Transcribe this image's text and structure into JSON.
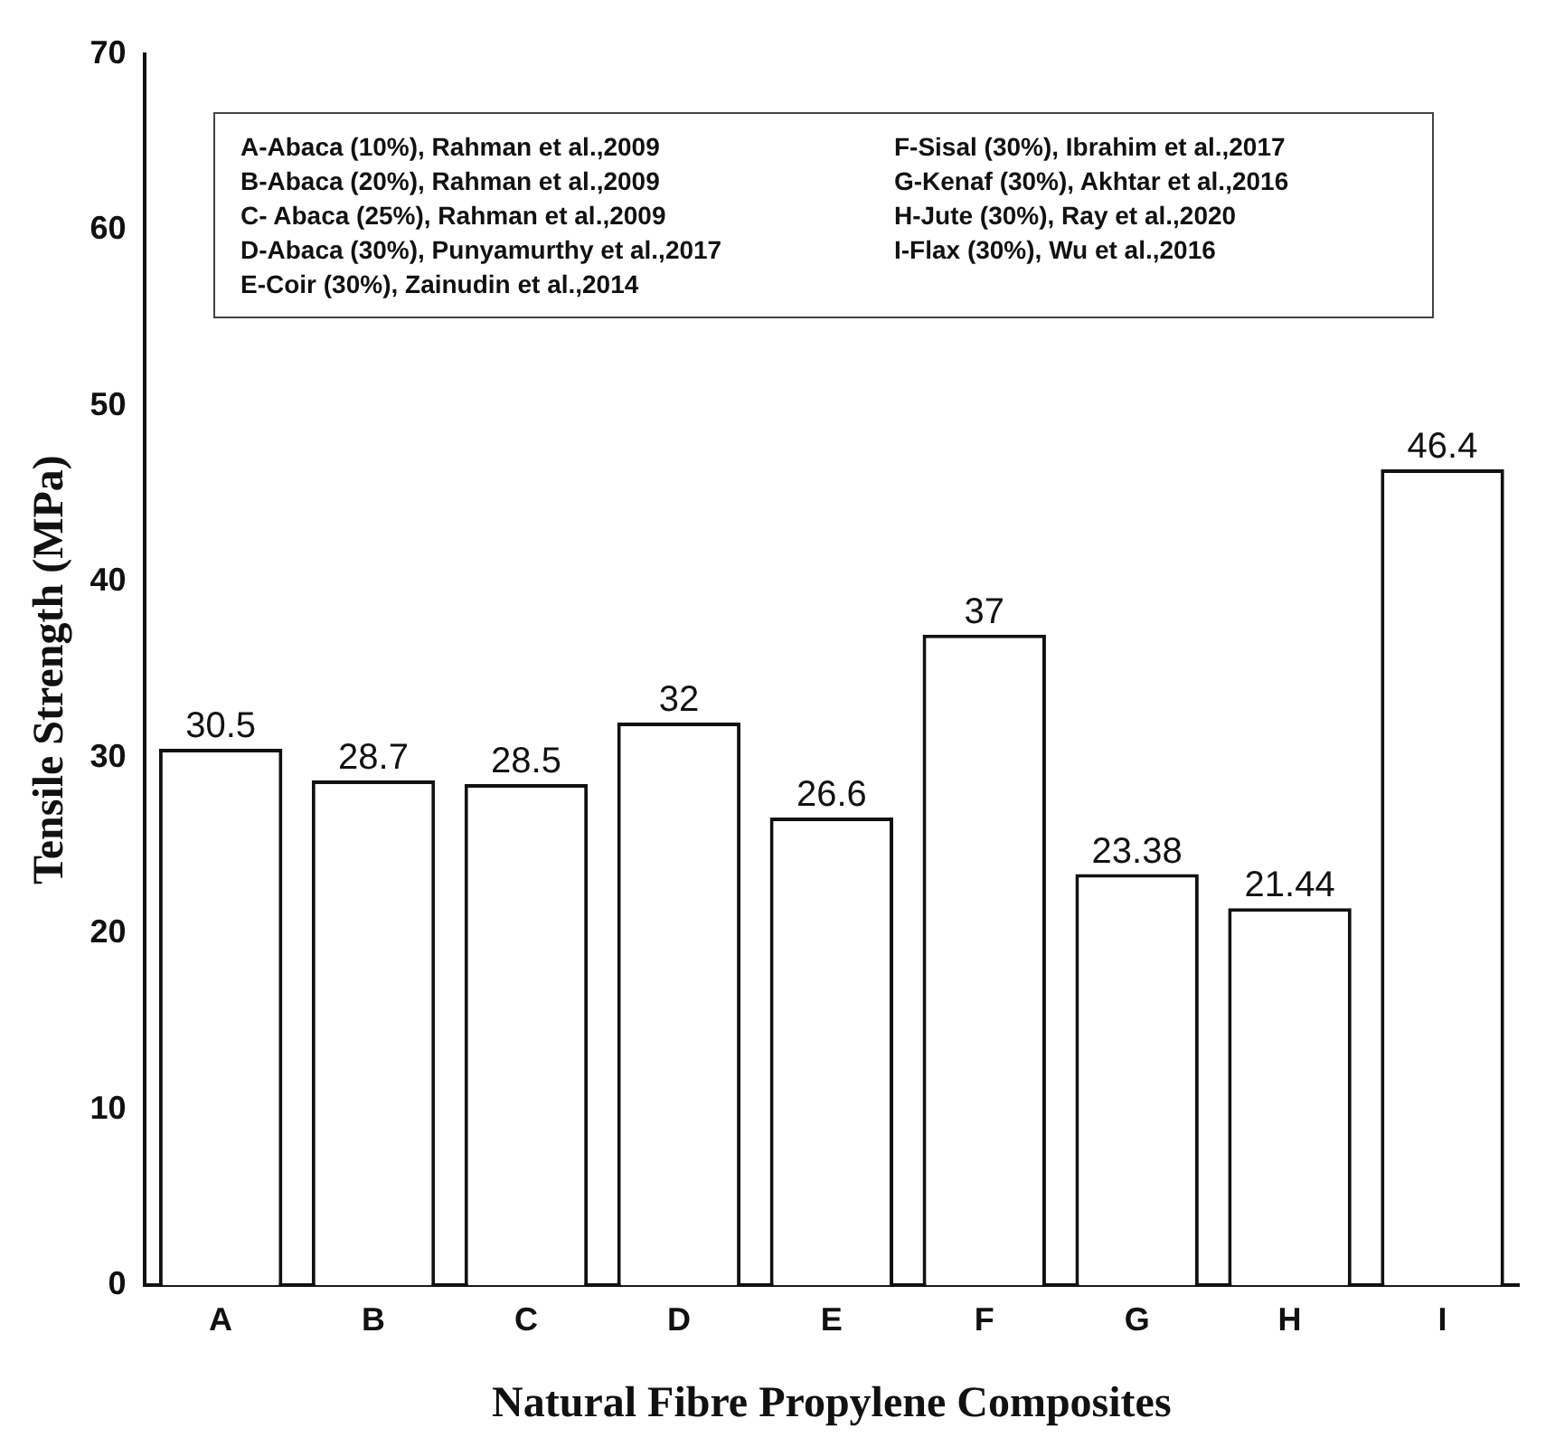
{
  "chart_data": {
    "type": "bar",
    "xlabel": "Natural Fibre Propylene Composites",
    "ylabel": "Tensile Strength (MPa)",
    "categories": [
      "A",
      "B",
      "C",
      "D",
      "E",
      "F",
      "G",
      "H",
      "I"
    ],
    "values": [
      30.5,
      28.7,
      28.5,
      32,
      26.6,
      37,
      23.38,
      21.44,
      46.4
    ],
    "color": "#ffffff",
    "ylim": [
      0,
      70
    ],
    "yticks": [
      0,
      10,
      20,
      30,
      40,
      50,
      60,
      70
    ],
    "grid": false,
    "legend": false,
    "data_labels": true,
    "annotations": [
      "A-Abaca (10%), Rahman et al.,2009",
      "B-Abaca (20%), Rahman et al.,2009",
      "C- Abaca (25%), Rahman et al.,2009",
      "D-Abaca (30%), Punyamurthy et al.,2017",
      "E-Coir (30%), Zainudin et al.,2014",
      "F-Sisal (30%), Ibrahim et al.,2017",
      "G-Kenaf (30%), Akhtar et al.,2016",
      "H-Jute (30%), Ray et al.,2020",
      "I-Flax (30%), Wu et al.,2016"
    ]
  }
}
